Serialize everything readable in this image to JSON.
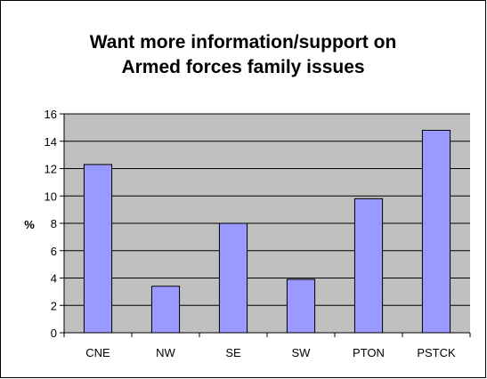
{
  "chart_data": {
    "type": "bar",
    "title_lines": [
      "Want more information/support on",
      "Armed forces family issues"
    ],
    "xlabel": "",
    "ylabel": "%",
    "categories": [
      "CNE",
      "NW",
      "SE",
      "SW",
      "PTON",
      "PSTCK"
    ],
    "values": [
      12.3,
      3.4,
      8.0,
      3.9,
      9.8,
      14.8
    ],
    "ylim": [
      0,
      16
    ],
    "yticks": [
      0,
      2,
      4,
      6,
      8,
      10,
      12,
      14,
      16
    ],
    "grid": true,
    "legend": "none",
    "colors": {
      "plot_background": "#c0c0c0",
      "bar_fill": "#9999ff",
      "bar_stroke": "#000000",
      "grid": "#000000",
      "axis": "#000000"
    }
  }
}
